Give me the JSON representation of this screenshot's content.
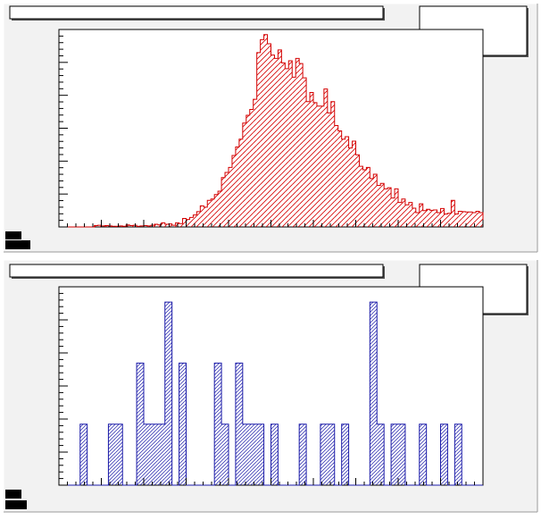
{
  "canvas": {
    "background_color": "#f2f2f2",
    "frame_color": "#ffffff",
    "frame_shadow_color": "#9a9a9a"
  },
  "chart_data": [
    {
      "type": "histogram",
      "title": "",
      "xlabel": "",
      "ylabel": "",
      "line_color": "#d40000",
      "fill_color": "#d40000",
      "fill_style": "hatched",
      "stats_box": "top-right",
      "grid": false,
      "xlim": [
        0,
        120
      ],
      "ylim": [
        0,
        580
      ],
      "y_ticks_major": [
        0,
        100,
        200,
        300,
        400,
        500
      ],
      "y_tick_labels_visible": [],
      "x_tick_labels_visible": [],
      "values": [
        0,
        0,
        0,
        0,
        0,
        0,
        0,
        0,
        0,
        0,
        4,
        5,
        3,
        4,
        3,
        2,
        2,
        3,
        2,
        6,
        4,
        5,
        2,
        3,
        4,
        3,
        5,
        8,
        6,
        12,
        8,
        9,
        5,
        12,
        10,
        25,
        22,
        28,
        35,
        45,
        62,
        58,
        78,
        82,
        95,
        105,
        145,
        160,
        175,
        210,
        235,
        258,
        305,
        328,
        345,
        375,
        512,
        550,
        565,
        538,
        505,
        495,
        520,
        482,
        465,
        488,
        440,
        495,
        480,
        438,
        368,
        395,
        365,
        355,
        355,
        405,
        335,
        368,
        298,
        282,
        258,
        265,
        232,
        252,
        212,
        178,
        168,
        175,
        142,
        155,
        122,
        128,
        112,
        115,
        85,
        112,
        72,
        82,
        65,
        72,
        55,
        42,
        68,
        48,
        52,
        49,
        50,
        42,
        54,
        38,
        40,
        78,
        38,
        46,
        45,
        44,
        44,
        42,
        46,
        42
      ]
    },
    {
      "type": "histogram",
      "title": "",
      "xlabel": "",
      "ylabel": "",
      "line_color": "#1a1aa8",
      "fill_color": "#1a1aa8",
      "fill_style": "hatched",
      "stats_box": "top-right",
      "grid": false,
      "xlim": [
        0,
        60
      ],
      "ylim": [
        0,
        6.5
      ],
      "y_tick_labels_visible": [],
      "x_tick_labels_visible": [],
      "values": [
        0,
        0,
        0,
        2,
        0,
        0,
        0,
        2,
        2,
        0,
        0,
        4,
        2,
        2,
        2,
        6,
        0,
        4,
        0,
        0,
        0,
        0,
        4,
        2,
        0,
        4,
        2,
        2,
        2,
        0,
        2,
        0,
        0,
        0,
        2,
        0,
        0,
        2,
        2,
        0,
        2,
        0,
        0,
        0,
        6,
        2,
        0,
        2,
        2,
        0,
        0,
        2,
        0,
        0,
        2,
        0,
        2,
        0,
        0,
        0
      ]
    }
  ]
}
